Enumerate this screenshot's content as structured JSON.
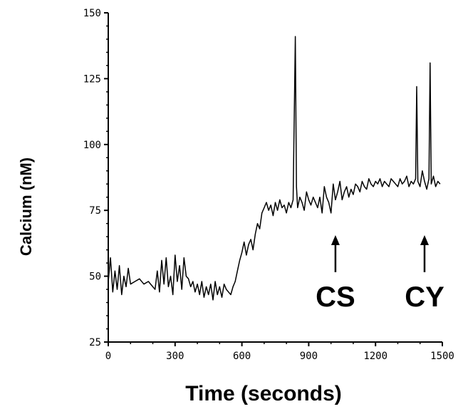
{
  "chart_data": {
    "type": "line",
    "title": "",
    "xlabel": "Time (seconds)",
    "ylabel": "Calcium  (nM)",
    "xlim": [
      0,
      1500
    ],
    "ylim": [
      25,
      150
    ],
    "xticks": [
      0,
      300,
      600,
      900,
      1200,
      1500
    ],
    "yticks": [
      25,
      50,
      75,
      100,
      125,
      150
    ],
    "xtick_labels": [
      "0",
      "300",
      "600",
      "900",
      "1200",
      "1500"
    ],
    "ytick_labels": [
      "25",
      "50",
      "75",
      "100",
      "125",
      "150"
    ],
    "grid": false,
    "series": [
      {
        "color": "#000000",
        "x": [
          0,
          10,
          20,
          30,
          40,
          50,
          60,
          70,
          80,
          90,
          100,
          120,
          140,
          160,
          180,
          200,
          210,
          220,
          230,
          240,
          250,
          260,
          270,
          280,
          290,
          300,
          310,
          320,
          330,
          340,
          350,
          360,
          370,
          380,
          390,
          400,
          410,
          420,
          430,
          440,
          450,
          460,
          470,
          480,
          490,
          500,
          510,
          520,
          530,
          540,
          550,
          560,
          570,
          580,
          590,
          600,
          610,
          620,
          630,
          640,
          650,
          660,
          670,
          680,
          690,
          700,
          710,
          720,
          730,
          740,
          750,
          760,
          770,
          780,
          790,
          800,
          810,
          820,
          830,
          840,
          845,
          850,
          860,
          870,
          880,
          890,
          900,
          910,
          920,
          930,
          940,
          950,
          960,
          970,
          980,
          990,
          1000,
          1010,
          1020,
          1030,
          1040,
          1050,
          1060,
          1070,
          1080,
          1090,
          1100,
          1110,
          1120,
          1130,
          1140,
          1150,
          1160,
          1170,
          1180,
          1190,
          1200,
          1210,
          1220,
          1230,
          1240,
          1250,
          1260,
          1270,
          1280,
          1290,
          1300,
          1310,
          1320,
          1330,
          1340,
          1350,
          1360,
          1370,
          1380,
          1385,
          1390,
          1400,
          1410,
          1420,
          1430,
          1440,
          1445,
          1450,
          1460,
          1470,
          1480,
          1490
        ],
        "y": [
          48,
          57,
          44,
          52,
          45,
          54,
          43,
          50,
          46,
          53,
          47,
          48,
          49,
          47,
          48,
          46,
          45,
          52,
          44,
          56,
          47,
          57,
          46,
          50,
          43,
          58,
          48,
          54,
          45,
          57,
          50,
          49,
          46,
          48,
          44,
          47,
          43,
          48,
          42,
          46,
          43,
          47,
          41,
          48,
          43,
          46,
          42,
          47,
          45,
          44,
          43,
          46,
          48,
          52,
          56,
          59,
          63,
          58,
          62,
          64,
          60,
          66,
          70,
          68,
          74,
          76,
          78,
          75,
          77,
          73,
          78,
          75,
          79,
          76,
          77,
          74,
          78,
          76,
          79,
          141,
          84,
          76,
          80,
          78,
          75,
          82,
          79,
          77,
          80,
          78,
          76,
          80,
          74,
          84,
          80,
          78,
          74,
          85,
          79,
          82,
          86,
          79,
          82,
          84,
          80,
          83,
          81,
          85,
          84,
          82,
          86,
          84,
          83,
          87,
          85,
          84,
          86,
          85,
          87,
          84,
          86,
          85,
          84,
          87,
          86,
          85,
          84,
          87,
          85,
          86,
          88,
          84,
          86,
          85,
          87,
          122,
          86,
          84,
          90,
          86,
          83,
          87,
          131,
          85,
          88,
          84,
          86,
          85
        ]
      }
    ],
    "annotations": [
      {
        "text": "CS",
        "x": 1020,
        "y": 40
      },
      {
        "text": "CY",
        "x": 1420,
        "y": 40
      }
    ]
  }
}
